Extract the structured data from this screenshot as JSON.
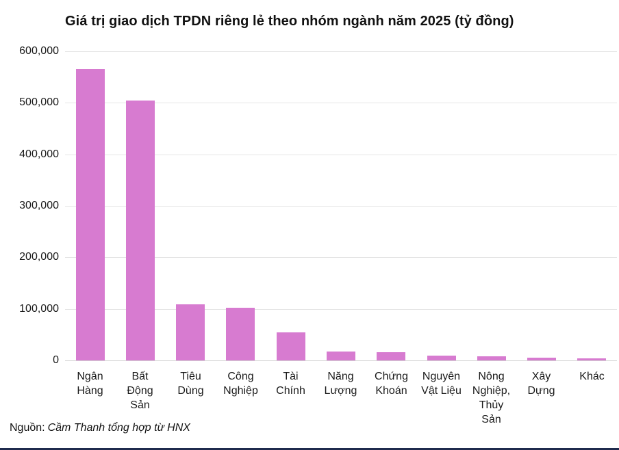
{
  "page": {
    "background": "#ffffff",
    "bottom_bar_color": "#1f2b4d"
  },
  "chart_data": {
    "type": "bar",
    "title": "Giá trị giao dịch TPDN riêng lẻ theo nhóm ngành năm 2025 (tỷ đồng)",
    "xlabel": "",
    "ylabel": "",
    "categories": [
      "Ngân Hàng",
      "Bất Động Sản",
      "Tiêu Dùng",
      "Công Nghiệp",
      "Tài Chính",
      "Năng Lượng",
      "Chứng Khoán",
      "Nguyên Vật Liệu",
      "Nông Nghiệp, Thủy Sản",
      "Xây Dựng",
      "Khác"
    ],
    "category_lines": [
      [
        "Ngân",
        "Hàng"
      ],
      [
        "Bất",
        "Động",
        "Sản"
      ],
      [
        "Tiêu",
        "Dùng"
      ],
      [
        "Công",
        "Nghiệp"
      ],
      [
        "Tài",
        "Chính"
      ],
      [
        "Năng",
        "Lượng"
      ],
      [
        "Chứng",
        "Khoán"
      ],
      [
        "Nguyên",
        "Vật Liệu"
      ],
      [
        "Nông",
        "Nghiệp,",
        "Thủy",
        "Sản"
      ],
      [
        "Xây",
        "Dựng"
      ],
      [
        "Khác"
      ]
    ],
    "values": [
      565000,
      505000,
      109000,
      102000,
      55000,
      17000,
      15500,
      9000,
      8500,
      5000,
      4000
    ],
    "ylim": [
      0,
      600000
    ],
    "yticks": [
      0,
      100000,
      200000,
      300000,
      400000,
      500000,
      600000
    ],
    "ytick_labels": [
      "0",
      "100,000",
      "200,000",
      "300,000",
      "400,000",
      "500,000",
      "600,000"
    ],
    "grid": true,
    "legend": false,
    "bar_color": "#d77bd0",
    "grid_color": "#e4e4e4",
    "baseline_color": "#d2d2d2",
    "axis_text_color": "#1a1a1a"
  },
  "footer": {
    "source_label": "Nguồn:",
    "source_text": "Cầm Thanh tổng hợp từ HNX"
  }
}
